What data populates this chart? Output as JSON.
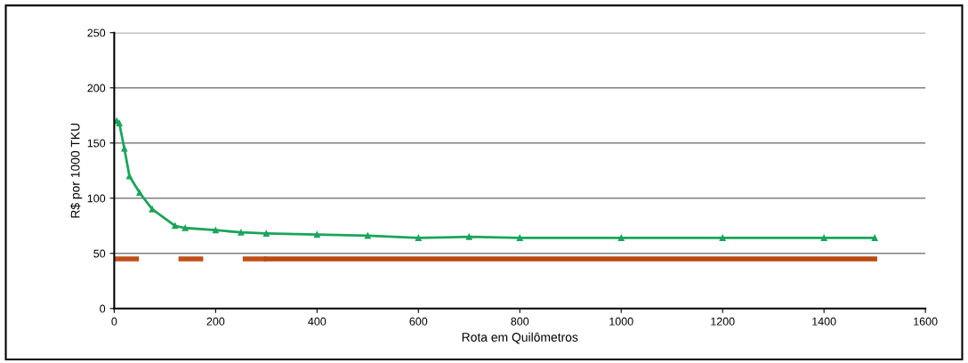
{
  "chart_data": {
    "type": "line",
    "xlabel": "Rota em Quilômetros",
    "ylabel": "R$ por 1000 TKU",
    "xlim": [
      0,
      1600
    ],
    "xticks": [
      0,
      200,
      400,
      600,
      800,
      1000,
      1200,
      1400,
      1600
    ],
    "ylim": [
      0,
      250
    ],
    "yticks": [
      0,
      50,
      100,
      150,
      200,
      250
    ],
    "grid": "y",
    "legend": false,
    "series": [
      {
        "color": "#1aa55a",
        "marker": "triangle",
        "line_style": "solid",
        "x": [
          5,
          10,
          20,
          30,
          50,
          75,
          120,
          140,
          200,
          250,
          300,
          400,
          500,
          600,
          700,
          800,
          1000,
          1200,
          1400,
          1500
        ],
        "values": [
          170,
          168,
          145,
          120,
          105,
          90,
          75,
          73,
          71,
          69,
          68,
          67,
          66,
          64,
          65,
          64,
          64,
          64,
          64,
          64
        ]
      },
      {
        "color": "#c0501a",
        "marker": "none",
        "line_style": "dashed",
        "x": [
          0,
          300
        ],
        "values": [
          45,
          45
        ]
      },
      {
        "color": "#b84a10",
        "marker": "none",
        "line_style": "solid",
        "x": [
          300,
          1500
        ],
        "values": [
          45,
          45
        ]
      }
    ]
  }
}
